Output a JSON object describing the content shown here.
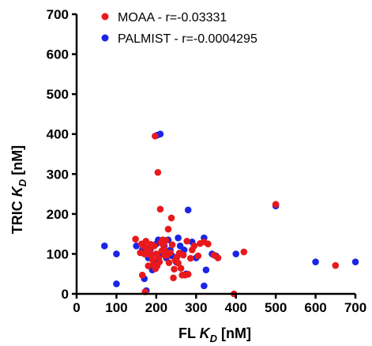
{
  "chart_data": {
    "type": "scatter",
    "title": "",
    "xlabel": {
      "main": "FL ",
      "italic": "K",
      "sub": "D",
      "unit": " [nM]"
    },
    "ylabel": {
      "main": "TRIC ",
      "italic": "K",
      "sub": "D",
      "unit": " [nM]"
    },
    "xlim": [
      0,
      700
    ],
    "ylim": [
      0,
      700
    ],
    "xticks": [
      0,
      100,
      200,
      300,
      400,
      500,
      600,
      700
    ],
    "yticks": [
      0,
      100,
      200,
      300,
      400,
      500,
      600,
      700
    ],
    "grid": false,
    "legend_position": "top-left",
    "series": [
      {
        "name": "MOAA - r=-0.03331",
        "color": "#e8191c",
        "points": [
          [
            148,
            137
          ],
          [
            160,
            103
          ],
          [
            163,
            125
          ],
          [
            165,
            47
          ],
          [
            168,
            120
          ],
          [
            170,
            100
          ],
          [
            172,
            5
          ],
          [
            174,
            132
          ],
          [
            175,
            115
          ],
          [
            178,
            100
          ],
          [
            180,
            70
          ],
          [
            183,
            110
          ],
          [
            186,
            124
          ],
          [
            188,
            97
          ],
          [
            190,
            86
          ],
          [
            193,
            74
          ],
          [
            195,
            120
          ],
          [
            197,
            395
          ],
          [
            198,
            63
          ],
          [
            200,
            100
          ],
          [
            202,
            70
          ],
          [
            204,
            304
          ],
          [
            206,
            90
          ],
          [
            208,
            80
          ],
          [
            210,
            212
          ],
          [
            212,
            128
          ],
          [
            214,
            108
          ],
          [
            216,
            135
          ],
          [
            218,
            122
          ],
          [
            220,
            110
          ],
          [
            222,
            96
          ],
          [
            224,
            134
          ],
          [
            227,
            97
          ],
          [
            230,
            162
          ],
          [
            232,
            78
          ],
          [
            235,
            103
          ],
          [
            238,
            190
          ],
          [
            240,
            123
          ],
          [
            243,
            40
          ],
          [
            245,
            62
          ],
          [
            248,
            84
          ],
          [
            252,
            92
          ],
          [
            255,
            77
          ],
          [
            258,
            102
          ],
          [
            262,
            64
          ],
          [
            265,
            47
          ],
          [
            268,
            97
          ],
          [
            272,
            47
          ],
          [
            277,
            132
          ],
          [
            280,
            49
          ],
          [
            286,
            89
          ],
          [
            290,
            110
          ],
          [
            295,
            120
          ],
          [
            305,
            95
          ],
          [
            310,
            126
          ],
          [
            320,
            130
          ],
          [
            330,
            125
          ],
          [
            345,
            97
          ],
          [
            355,
            90
          ],
          [
            395,
            0
          ],
          [
            420,
            105
          ],
          [
            500,
            224
          ],
          [
            650,
            71
          ]
        ]
      },
      {
        "name": "PALMIST - r=-0.0004295",
        "color": "#1a25e6",
        "points": [
          [
            70,
            120
          ],
          [
            100,
            25
          ],
          [
            100,
            100
          ],
          [
            150,
            120
          ],
          [
            165,
            110
          ],
          [
            170,
            38
          ],
          [
            175,
            8
          ],
          [
            180,
            90
          ],
          [
            185,
            110
          ],
          [
            190,
            60
          ],
          [
            195,
            80
          ],
          [
            200,
            125
          ],
          [
            202,
            397
          ],
          [
            205,
            135
          ],
          [
            210,
            400
          ],
          [
            215,
            100
          ],
          [
            220,
            120
          ],
          [
            225,
            90
          ],
          [
            230,
            135
          ],
          [
            235,
            110
          ],
          [
            240,
            95
          ],
          [
            250,
            80
          ],
          [
            255,
            140
          ],
          [
            260,
            120
          ],
          [
            270,
            110
          ],
          [
            275,
            50
          ],
          [
            280,
            210
          ],
          [
            290,
            130
          ],
          [
            300,
            90
          ],
          [
            320,
            140
          ],
          [
            325,
            60
          ],
          [
            320,
            20
          ],
          [
            340,
            100
          ],
          [
            350,
            95
          ],
          [
            400,
            100
          ],
          [
            500,
            220
          ],
          [
            600,
            80
          ],
          [
            700,
            80
          ]
        ]
      }
    ]
  }
}
